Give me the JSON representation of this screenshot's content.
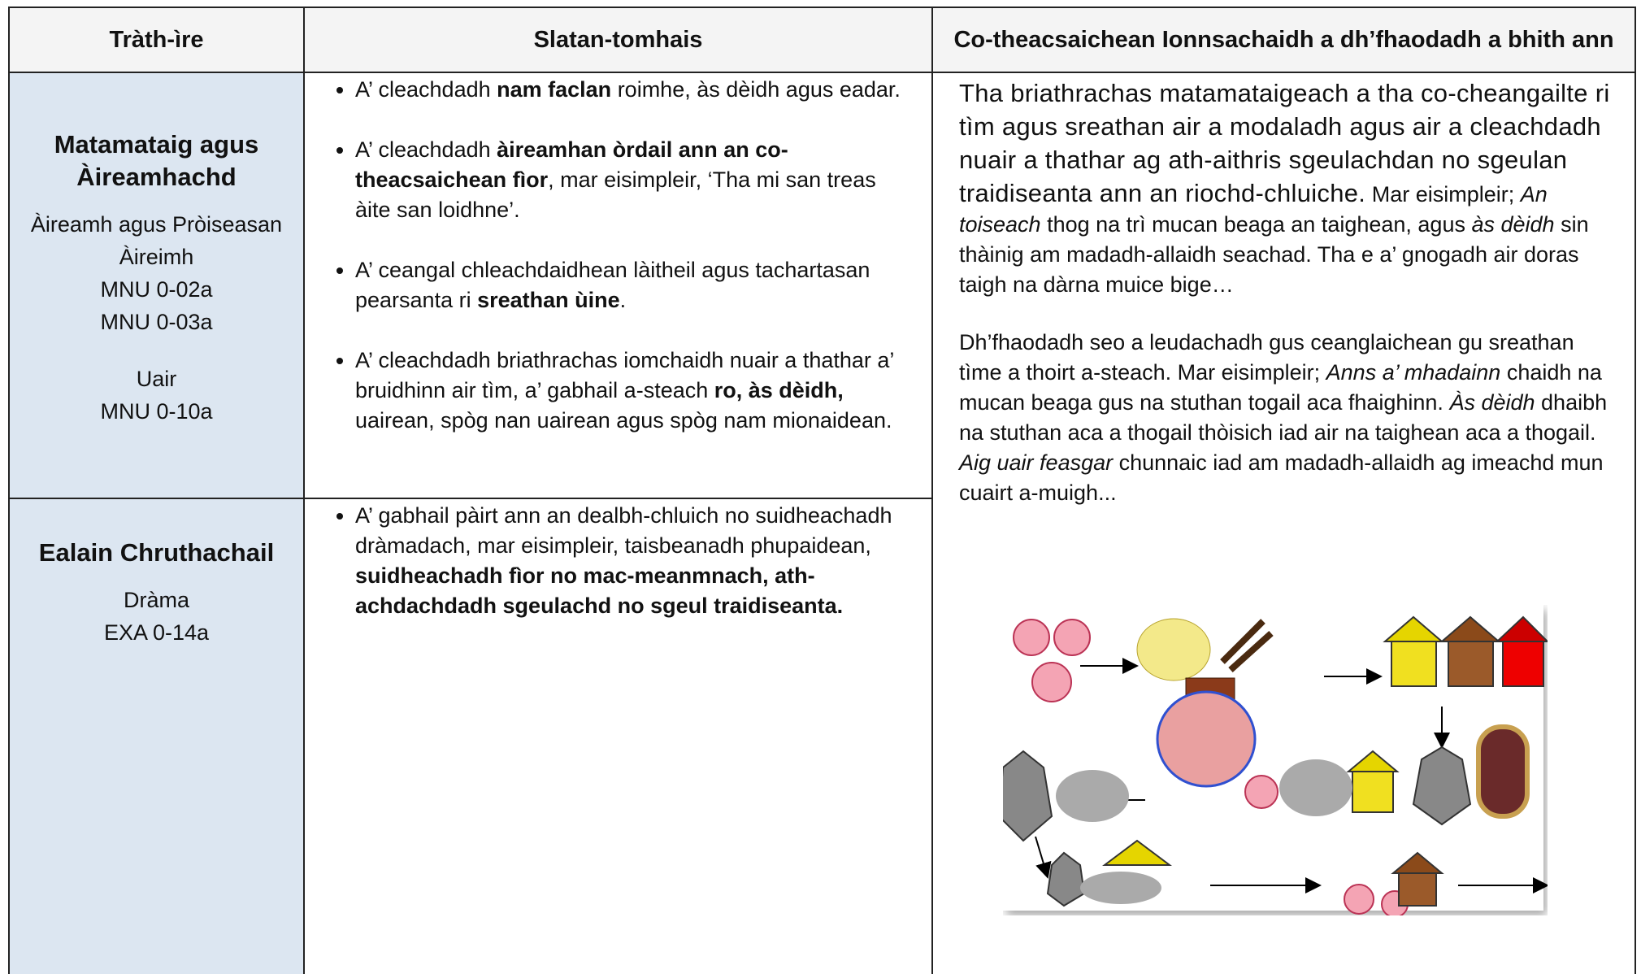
{
  "table": {
    "header": [
      "Tràth-ìre",
      "Slatan-tomhais",
      "Co-theacsaichean Ionnsachaidh a dh’fhaodadh a bhith ann"
    ],
    "rows": [
      {
        "col1": {
          "title": "Matamataig agus Àireamhachd",
          "lines": [
            "Àireamh agus Pròiseasan Àireimh",
            "MNU 0-02a",
            "MNU 0-03a",
            "Uair",
            "MNU 0-10a"
          ]
        },
        "bullets": [
          [
            {
              "text": "A’ cleachdadh "
            },
            {
              "text": "nam faclan",
              "bold": true
            },
            {
              "text": " roimhe, às dèidh agus eadar."
            }
          ],
          [
            {
              "text": "A’ cleachdadh "
            },
            {
              "text": "àireamhan òrdail ann an co-theacsaichean fìor",
              "bold": true
            },
            {
              "text": ", mar eisimpleir, ‘Tha mi san treas àite san loidhne’."
            }
          ],
          [
            {
              "text": "A’ ceangal chleachdaidhean làitheil agus tachartasan pearsanta ri "
            },
            {
              "text": "sreathan ùine",
              "bold": true
            },
            {
              "text": "."
            }
          ],
          [
            {
              "text": "A’ cleachdadh briathrachas iomchaidh nuair a thathar a’ bruidhinn air tìm, a’ gabhail a-steach "
            },
            {
              "text": "ro, às dèidh,",
              "bold": true
            },
            {
              "text": " uairean, spòg nan uairean agus spòg nam mionaidean."
            }
          ]
        ]
      },
      {
        "col1": {
          "title": "Ealain Chruthachail",
          "lines": [
            "Dràma",
            "EXA 0-14a"
          ]
        },
        "bullets": [
          [
            {
              "text": "A’ gabhail pàirt ann an dealbh-chluich no suidheachadh dràmadach, mar eisimpleir, taisbeanadh phupaidean, "
            },
            {
              "text": "suidheachadh fìor no mac-meanmnach, ath-achdachdadh sgeulachd no sgeul traidiseanta.",
              "bold": true
            }
          ]
        ]
      }
    ],
    "contexts": [
      [
        {
          "text": "Tha briathrachas matamataigeach a tha co-cheangailte ri tìm agus sreathan air a modaladh agus air a cleachdadh nuair a thathar ag ath-aithris sgeulachdan no sgeulan traidiseanta ann an riochd-chluiche.",
          "large": true
        },
        {
          "text": " Mar eisimpleir; "
        },
        {
          "text": "An toiseach",
          "italic": true
        },
        {
          "text": " thog na trì mucan beaga an taighean, agus "
        },
        {
          "text": "às dèidh",
          "italic": true
        },
        {
          "text": " sin thàinig am madadh-allaidh seachad. Tha e a’ gnogadh air doras taigh na dàrna muice bige…"
        }
      ],
      [
        {
          "text": "Dh’fhaodadh seo a leudachadh gus ceanglaichean gu sreathan tìme a thoirt a-steach. Mar eisimpleir; "
        },
        {
          "text": "Anns a’ mhadainn",
          "italic": true
        },
        {
          "text": " chaidh na mucan beaga gus na stuthan togail aca fhaighinn. "
        },
        {
          "text": "Às dèidh",
          "italic": true
        },
        {
          "text": " dhaibh na stuthan aca a thogail thòisich iad air na taighean aca a thogail. "
        },
        {
          "text": "Aig uair feasgar",
          "italic": true
        },
        {
          "text": " chunnaic iad am madadh-allaidh ag imeachd mun cuairt a-muigh..."
        }
      ]
    ]
  }
}
